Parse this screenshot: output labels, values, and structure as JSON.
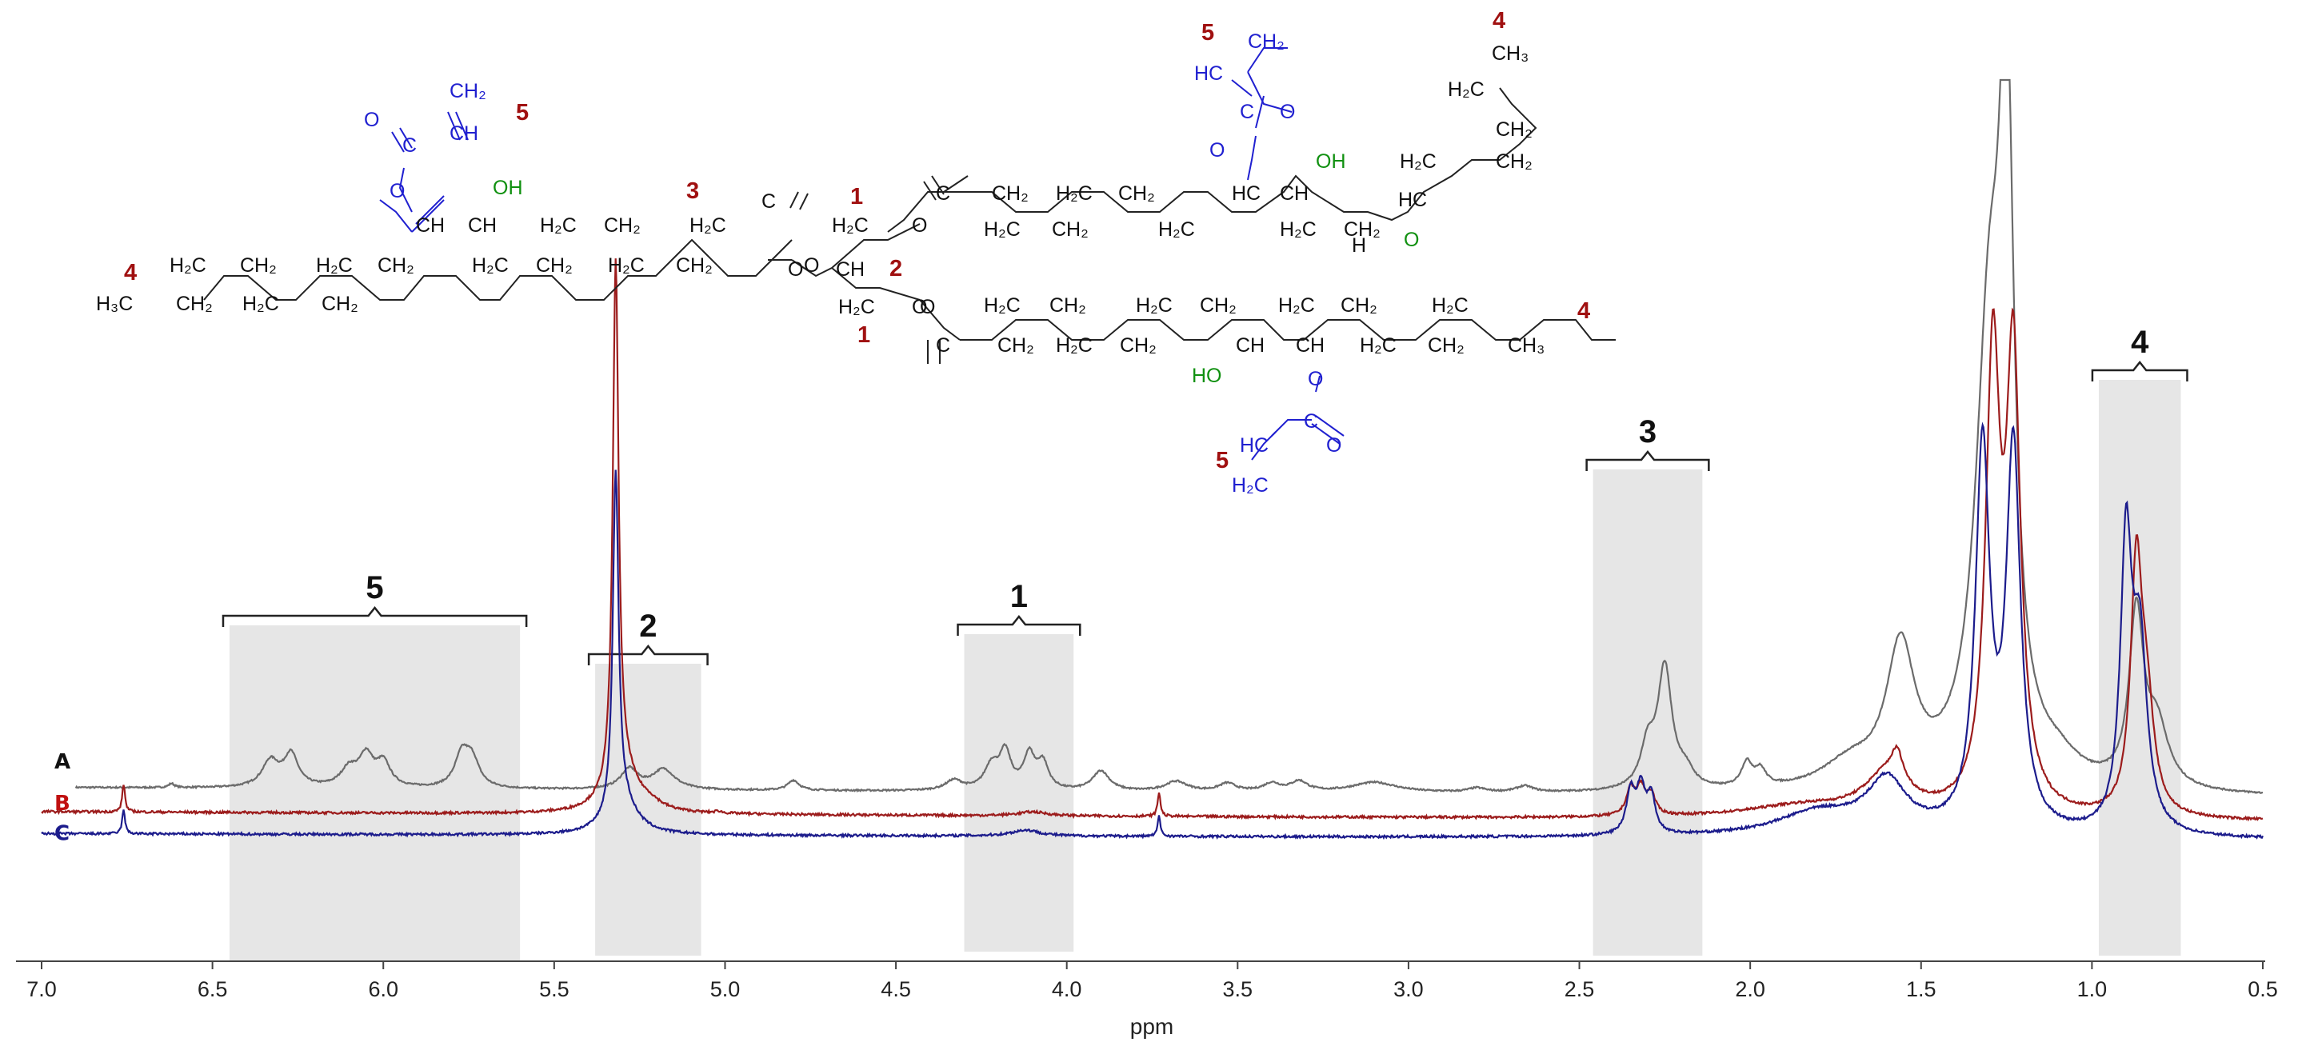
{
  "chart_data": {
    "type": "line",
    "xlabel": "ppm",
    "xlim": [
      7.0,
      0.5
    ],
    "x_axis_reversed": true,
    "x_ticks": [
      "7.0",
      "6.5",
      "6.0",
      "5.5",
      "5.0",
      "4.5",
      "4.0",
      "3.5",
      "3.0",
      "2.5",
      "2.0",
      "1.5",
      "1.0",
      "0.5"
    ],
    "series": [
      {
        "name": "A",
        "color": "#6b6b6b",
        "label_color": "#111111",
        "start_ppm": 6.9,
        "baseline": 0.06,
        "tilt": 0.05,
        "noise": 0.004,
        "peaks": [
          [
            6.62,
            0.02,
            0.01
          ],
          [
            6.33,
            0.13,
            0.03
          ],
          [
            6.27,
            0.16,
            0.025
          ],
          [
            6.1,
            0.09,
            0.03
          ],
          [
            6.05,
            0.15,
            0.025
          ],
          [
            6.0,
            0.12,
            0.025
          ],
          [
            5.77,
            0.16,
            0.025
          ],
          [
            5.74,
            0.13,
            0.025
          ],
          [
            5.28,
            0.1,
            0.03
          ],
          [
            5.18,
            0.1,
            0.04
          ],
          [
            4.8,
            0.05,
            0.02
          ],
          [
            4.33,
            0.05,
            0.03
          ],
          [
            4.22,
            0.12,
            0.025
          ],
          [
            4.18,
            0.18,
            0.02
          ],
          [
            4.11,
            0.17,
            0.02
          ],
          [
            4.07,
            0.13,
            0.02
          ],
          [
            3.9,
            0.1,
            0.03
          ],
          [
            3.68,
            0.05,
            0.04
          ],
          [
            3.53,
            0.04,
            0.03
          ],
          [
            3.4,
            0.04,
            0.03
          ],
          [
            3.32,
            0.05,
            0.03
          ],
          [
            3.1,
            0.05,
            0.08
          ],
          [
            2.8,
            0.02,
            0.03
          ],
          [
            2.66,
            0.03,
            0.03
          ],
          [
            2.3,
            0.2,
            0.025
          ],
          [
            2.25,
            0.6,
            0.025
          ],
          [
            2.19,
            0.08,
            0.03
          ],
          [
            2.01,
            0.12,
            0.02
          ],
          [
            1.97,
            0.08,
            0.02
          ],
          [
            1.71,
            0.12,
            0.1
          ],
          [
            1.56,
            0.68,
            0.05
          ],
          [
            1.3,
            2.2,
            0.05
          ],
          [
            1.25,
            3.0,
            0.025
          ],
          [
            1.1,
            0.1,
            0.08
          ],
          [
            0.87,
            0.85,
            0.025
          ],
          [
            0.81,
            0.3,
            0.04
          ]
        ]
      },
      {
        "name": "B",
        "color": "#9c1c1c",
        "label_color": "#c01010",
        "start_ppm": 7.0,
        "baseline": -0.06,
        "tilt": 0.05,
        "noise": 0.006,
        "peaks": [
          [
            6.76,
            0.14,
            0.005
          ],
          [
            5.32,
            2.6,
            0.01
          ],
          [
            5.3,
            0.2,
            0.05
          ],
          [
            5.22,
            0.03,
            0.04
          ],
          [
            5.02,
            0.01,
            0.01
          ],
          [
            4.1,
            0.02,
            0.05
          ],
          [
            3.73,
            0.12,
            0.005
          ],
          [
            2.35,
            0.13,
            0.015
          ],
          [
            2.32,
            0.13,
            0.015
          ],
          [
            2.29,
            0.1,
            0.015
          ],
          [
            1.85,
            0.06,
            0.2
          ],
          [
            1.6,
            0.2,
            0.08
          ],
          [
            1.57,
            0.14,
            0.02
          ],
          [
            1.29,
            2.2,
            0.025
          ],
          [
            1.23,
            2.2,
            0.025
          ],
          [
            0.87,
            1.2,
            0.02
          ],
          [
            0.84,
            0.5,
            0.025
          ]
        ]
      },
      {
        "name": "C",
        "color": "#1c1c8c",
        "label_color": "#1c1c8c",
        "start_ppm": 7.0,
        "baseline": -0.17,
        "tilt": 0.03,
        "noise": 0.006,
        "peaks": [
          [
            6.76,
            0.12,
            0.005
          ],
          [
            5.32,
            1.7,
            0.01
          ],
          [
            5.3,
            0.15,
            0.05
          ],
          [
            4.12,
            0.03,
            0.05
          ],
          [
            3.73,
            0.1,
            0.005
          ],
          [
            2.35,
            0.21,
            0.015
          ],
          [
            2.32,
            0.22,
            0.015
          ],
          [
            2.29,
            0.18,
            0.015
          ],
          [
            1.8,
            0.12,
            0.15
          ],
          [
            1.6,
            0.26,
            0.07
          ],
          [
            1.32,
            1.9,
            0.025
          ],
          [
            1.23,
            1.9,
            0.025
          ],
          [
            0.9,
            1.4,
            0.02
          ],
          [
            0.86,
            0.9,
            0.025
          ]
        ]
      }
    ],
    "regions": [
      {
        "label": "5",
        "from": 6.45,
        "to": 5.6
      },
      {
        "label": "2",
        "from": 5.38,
        "to": 5.07
      },
      {
        "label": "1",
        "from": 4.3,
        "to": 3.98
      },
      {
        "label": "3",
        "from": 2.46,
        "to": 2.14
      },
      {
        "label": "4",
        "from": 0.98,
        "to": 0.74
      }
    ]
  },
  "structure": {
    "labels_black": [
      "H₂C",
      "CH₂",
      "H₃C",
      "CH₂",
      "H₂C",
      "CH₂",
      "H₂C",
      "CH₂",
      "CH",
      "CH",
      "H₂C",
      "CH₂",
      "H₂C",
      "CH₂",
      "H₂C",
      "CH₂",
      "H₂C",
      "C",
      "O",
      "H₂C",
      "O",
      "CH",
      "H₂C",
      "O",
      "C",
      "CH₂",
      "H₂C",
      "CH₂",
      "H₂C",
      "CH₂",
      "HC",
      "CH",
      "H₂C",
      "H₂C",
      "CH₂",
      "CH₃",
      "H₂C",
      "CH₂",
      "H₂C",
      "CH₂",
      "HC",
      "H",
      "C",
      "CH₂",
      "H₂C",
      "CH₂",
      "H₂C",
      "CH₂",
      "H₂C",
      "CH₂",
      "H₂C",
      "CH₂",
      "CH",
      "CH",
      "H₂C",
      "CH₂",
      "H₂C",
      "CH₃",
      "O",
      "O"
    ],
    "labels_blue": [
      "CH₂",
      "CH",
      "O",
      "C",
      "O",
      "HC",
      "CH₂",
      "C",
      "O",
      "O",
      "HC",
      "C",
      "O",
      "O",
      "H₂C"
    ],
    "labels_green": [
      "OH",
      "OH",
      "HO",
      "O"
    ],
    "numbers": [
      "4",
      "5",
      "3",
      "1",
      "2",
      "1",
      "5",
      "4",
      "4",
      "5"
    ]
  }
}
